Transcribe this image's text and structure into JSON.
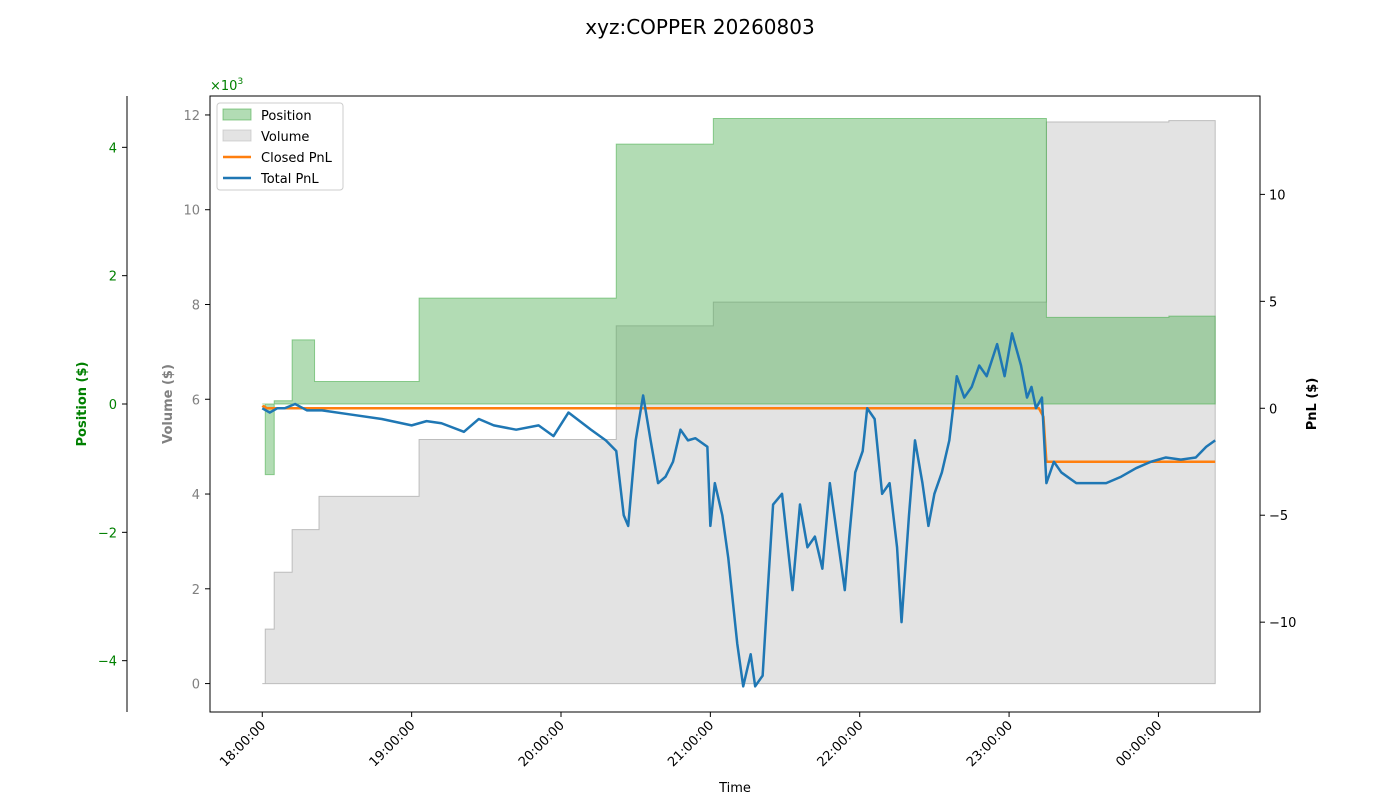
{
  "chart_data": {
    "type": "area",
    "title": "xyz:COPPER 20260803",
    "xlabel": "Time",
    "x_ticks": [
      "18:00:00",
      "19:00:00",
      "20:00:00",
      "21:00:00",
      "22:00:00",
      "23:00:00",
      "00:00:00"
    ],
    "x_range_hours": [
      17.65,
      24.68
    ],
    "axes": {
      "volume": {
        "label": "Volume ($)",
        "multiplier_text": "×10",
        "multiplier_exp": "3",
        "range": [
          -0.6,
          12.4
        ],
        "ticks": [
          0,
          2,
          4,
          6,
          8,
          10,
          12
        ],
        "color": "#808080"
      },
      "position": {
        "label": "Position ($)",
        "range": [
          -4.8,
          4.8
        ],
        "ticks": [
          -4,
          -2,
          0,
          2,
          4
        ],
        "color": "#008000"
      },
      "pnl": {
        "label": "PnL ($)",
        "range": [
          -14.2,
          14.6
        ],
        "ticks": [
          -10,
          -5,
          0,
          5,
          10
        ],
        "color": "#000000"
      }
    },
    "legend": {
      "placement": "upper-left",
      "entries": [
        "Position",
        "Volume",
        "Closed PnL",
        "Total PnL"
      ]
    },
    "colors": {
      "position": "#4caf50",
      "volume": "#c8c8c8",
      "closed_pnl": "#ff7f0e",
      "total_pnl": "#1f77b4"
    },
    "series": [
      {
        "name": "Position",
        "axis": "position",
        "kind": "step-area",
        "x": [
          18.0,
          18.02,
          18.08,
          18.2,
          18.35,
          19.05,
          20.37,
          21.02,
          23.22,
          23.25,
          23.5,
          23.9,
          24.07,
          24.38
        ],
        "y": [
          0,
          -1.1,
          0.05,
          1.0,
          0.35,
          1.65,
          4.05,
          4.45,
          4.45,
          1.35,
          1.35,
          1.35,
          1.37,
          1.37
        ]
      },
      {
        "name": "Volume",
        "axis": "volume",
        "kind": "step-area",
        "x": [
          18.0,
          18.02,
          18.08,
          18.2,
          18.38,
          19.05,
          20.37,
          21.02,
          23.25,
          24.07,
          24.38
        ],
        "y": [
          0,
          1.15,
          2.35,
          3.25,
          3.95,
          5.15,
          7.55,
          8.05,
          11.85,
          11.88,
          11.88
        ]
      },
      {
        "name": "Closed PnL",
        "axis": "pnl",
        "kind": "line",
        "x": [
          18.0,
          18.01,
          18.03,
          23.2,
          23.23,
          23.25,
          24.38
        ],
        "y": [
          0.05,
          0.1,
          0.0,
          0.0,
          -0.4,
          -2.5,
          -2.5
        ]
      },
      {
        "name": "Total PnL",
        "axis": "pnl",
        "kind": "line",
        "x": [
          18.0,
          18.05,
          18.1,
          18.15,
          18.22,
          18.3,
          18.4,
          18.6,
          18.8,
          19.0,
          19.1,
          19.2,
          19.35,
          19.45,
          19.55,
          19.7,
          19.85,
          19.95,
          20.05,
          20.2,
          20.3,
          20.37,
          20.42,
          20.45,
          20.5,
          20.55,
          20.6,
          20.65,
          20.7,
          20.75,
          20.8,
          20.85,
          20.9,
          20.98,
          21.0,
          21.03,
          21.08,
          21.12,
          21.18,
          21.22,
          21.27,
          21.3,
          21.35,
          21.38,
          21.42,
          21.48,
          21.55,
          21.6,
          21.65,
          21.7,
          21.75,
          21.8,
          21.85,
          21.9,
          21.93,
          21.97,
          22.02,
          22.05,
          22.1,
          22.15,
          22.2,
          22.25,
          22.28,
          22.33,
          22.37,
          22.42,
          22.46,
          22.5,
          22.55,
          22.6,
          22.65,
          22.7,
          22.75,
          22.8,
          22.85,
          22.92,
          22.97,
          23.02,
          23.08,
          23.12,
          23.15,
          23.18,
          23.22,
          23.25,
          23.3,
          23.35,
          23.45,
          23.55,
          23.65,
          23.75,
          23.85,
          23.95,
          24.05,
          24.15,
          24.25,
          24.32,
          24.38
        ],
        "y": [
          0.0,
          -0.2,
          0.0,
          0.0,
          0.2,
          -0.1,
          -0.1,
          -0.3,
          -0.5,
          -0.8,
          -0.6,
          -0.7,
          -1.1,
          -0.5,
          -0.8,
          -1.0,
          -0.8,
          -1.3,
          -0.2,
          -1.0,
          -1.5,
          -2.0,
          -5.0,
          -5.5,
          -1.5,
          0.6,
          -1.5,
          -3.5,
          -3.2,
          -2.5,
          -1.0,
          -1.5,
          -1.4,
          -1.8,
          -5.5,
          -3.5,
          -5.0,
          -7.0,
          -11.0,
          -13.0,
          -11.5,
          -13.0,
          -12.5,
          -9.0,
          -4.5,
          -4.0,
          -8.5,
          -4.5,
          -6.5,
          -6.0,
          -7.5,
          -3.5,
          -6.0,
          -8.5,
          -6.0,
          -3.0,
          -2.0,
          0.0,
          -0.5,
          -4.0,
          -3.5,
          -6.5,
          -10.0,
          -5.0,
          -1.5,
          -3.5,
          -5.5,
          -4.0,
          -3.0,
          -1.5,
          1.5,
          0.5,
          1.0,
          2.0,
          1.5,
          3.0,
          1.5,
          3.5,
          2.0,
          0.5,
          1.0,
          0.0,
          0.5,
          -3.5,
          -2.5,
          -3.0,
          -3.5,
          -3.5,
          -3.5,
          -3.2,
          -2.8,
          -2.5,
          -2.3,
          -2.4,
          -2.3,
          -1.8,
          -1.5
        ]
      }
    ]
  }
}
